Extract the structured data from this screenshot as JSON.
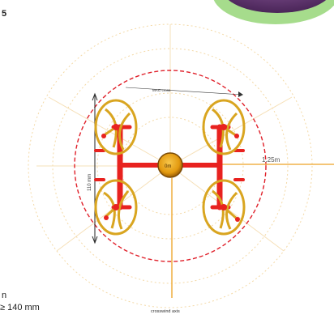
{
  "page": {
    "top_left_text": "5",
    "bottom_left_line1": "n",
    "bottom_left_line2": "≥ 140 mm"
  },
  "diagram": {
    "top_label": "MAG cross",
    "radius_label": "1.25m",
    "center_label": "0m",
    "side_dimension": "110 mm",
    "bottom_label": "crosswind axis"
  },
  "colors": {
    "ring_red": "#e0202a",
    "ring_orange": "#f2c477",
    "frame_red": "#e8221f",
    "rotor_gold": "#d9a520",
    "hub_orange": "#e39a10",
    "axis_line": "#f0b24a",
    "corner_purple": "#6a3d7a",
    "corner_green": "#8ccf78"
  }
}
